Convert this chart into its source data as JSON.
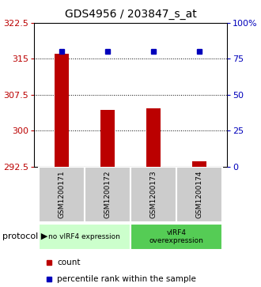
{
  "title": "GDS4956 / 203847_s_at",
  "samples": [
    "GSM1200171",
    "GSM1200172",
    "GSM1200173",
    "GSM1200174"
  ],
  "counts": [
    316.0,
    304.3,
    304.7,
    293.5
  ],
  "percentiles": [
    80,
    80,
    80,
    80
  ],
  "ylim_left": [
    292.5,
    322.5
  ],
  "yticks_left": [
    292.5,
    300.0,
    307.5,
    315.0,
    322.5
  ],
  "ylim_right": [
    0,
    100
  ],
  "yticks_right": [
    0,
    25,
    50,
    75,
    100
  ],
  "bar_color": "#bb0000",
  "dot_color": "#0000bb",
  "protocol_groups": [
    {
      "label": "no vIRF4 expression",
      "samples": [
        0,
        1
      ],
      "color": "#ccffcc"
    },
    {
      "label": "vIRF4\noverexpression",
      "samples": [
        2,
        3
      ],
      "color": "#55cc55"
    }
  ],
  "bg_color": "#ffffff",
  "sample_label_bg": "#cccccc",
  "bar_width": 0.3,
  "title_fontsize": 10,
  "tick_fontsize": 8
}
